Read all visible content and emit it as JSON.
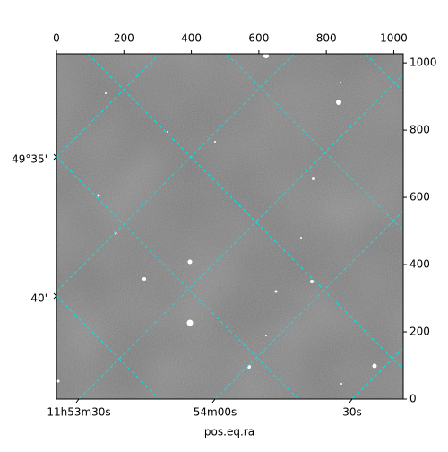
{
  "chart_data": {
    "type": "image",
    "xlabel": "pos.eq.ra",
    "xlim": [
      0,
      1028
    ],
    "ylim": [
      0,
      1027
    ],
    "xticks": [
      0,
      200,
      400,
      600,
      800,
      1000
    ],
    "yticks": [
      0,
      200,
      400,
      600,
      800,
      1000
    ],
    "ra_ticks": [
      "11h53m30s",
      "54m00s",
      "30s"
    ],
    "dec_ticks": [
      "49°35'",
      "40'"
    ],
    "grid_color": "#00e5e5"
  }
}
